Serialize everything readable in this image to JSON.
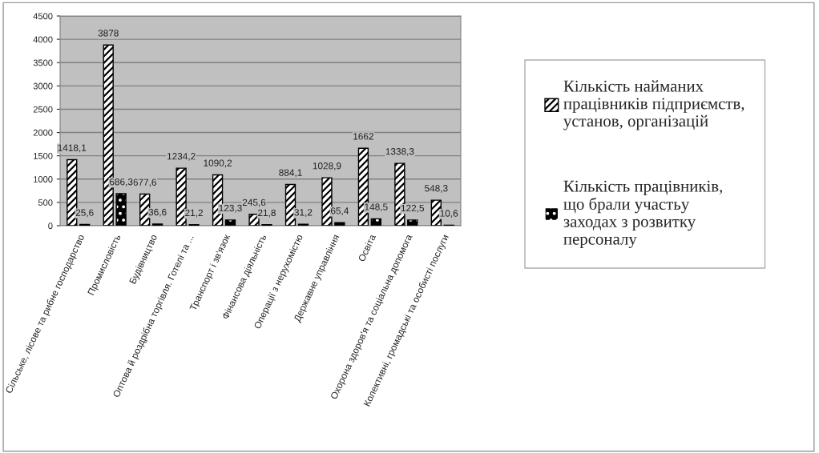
{
  "chart_data": {
    "type": "bar",
    "categories": [
      "Сільське, лісове та рибне господарство",
      "Промисловість",
      "Будівництво",
      "Оптова й роздрібна торгівля. Готелі та ...",
      "Транспорт і зв'язок",
      "Фінансова діяльність",
      "Операції з нерухомістю",
      "Державне управління",
      "Освіта",
      "Охорона здоров'я та соціальна допомога",
      "Колективні, громадські та особисті послуги"
    ],
    "series": [
      {
        "name": "Кількість найманих\nпрацівників підприємств,\nустанов, організацій",
        "color": "#ffffff",
        "values": [
          1418.1,
          3878,
          677.6,
          1234.2,
          1090.2,
          245.6,
          884.1,
          1028.9,
          1662,
          1338.3,
          548.3
        ],
        "value_labels": [
          "1418,1",
          "3878",
          "677,6",
          "1234,2",
          "1090,2",
          "245,6",
          "884,1",
          "1028,9",
          "1662",
          "1338,3",
          "548,3"
        ]
      },
      {
        "name": "Кількість працівників,\nщо брали участьу\nзаходах з розвитку\nперсоналу",
        "color": "#000000",
        "values": [
          25.6,
          686.3,
          36.6,
          21.2,
          123.3,
          21.8,
          31.2,
          65.4,
          148.5,
          122.5,
          10.6
        ],
        "value_labels": [
          "25,6",
          "686,3",
          "36,6",
          "21,2",
          "123,3",
          "21,8",
          "31,2",
          "65,4",
          "148,5",
          "122,5",
          "10,6"
        ]
      }
    ],
    "ylim": [
      0,
      4500
    ],
    "yticks": [
      0,
      500,
      1000,
      1500,
      2000,
      2500,
      3000,
      3500,
      4000,
      4500
    ],
    "grid": "y",
    "legend": "right"
  }
}
